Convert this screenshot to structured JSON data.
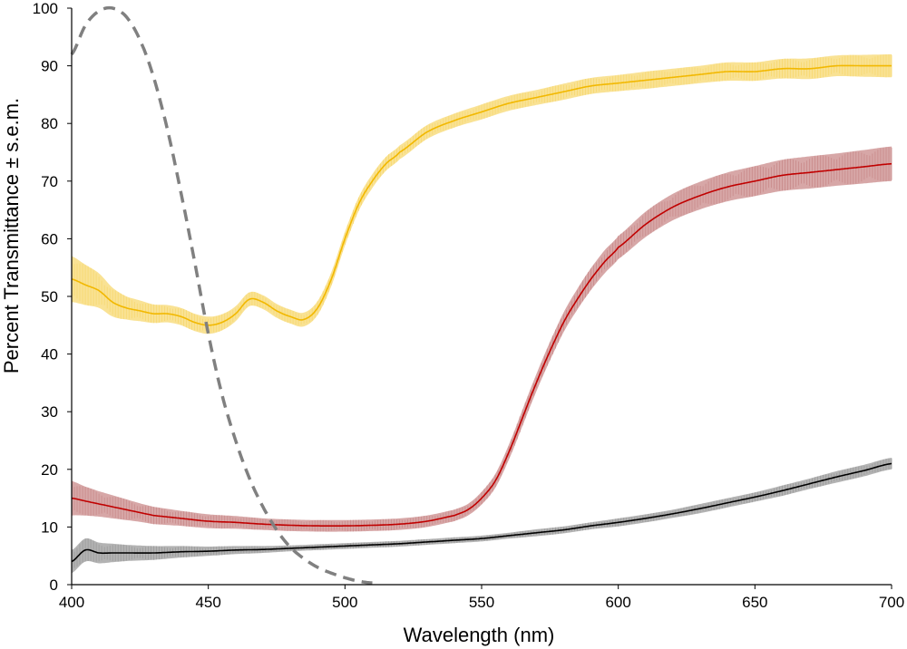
{
  "chart_data": {
    "type": "line",
    "title": "",
    "xlabel": "Wavelength (nm)",
    "ylabel": "Percent Transmittance ± s.e.m.",
    "xlim": [
      400,
      700
    ],
    "ylim": [
      0,
      100
    ],
    "x_ticks": [
      "400",
      "450",
      "500",
      "550",
      "600",
      "650",
      "700"
    ],
    "y_ticks": [
      "0",
      "10",
      "20",
      "30",
      "40",
      "50",
      "60",
      "70",
      "80",
      "90",
      "100"
    ],
    "grid": false,
    "legend": "none",
    "series": [
      {
        "color": "#f2b800",
        "band_color": "#f7d870",
        "x": [
          400,
          405,
          410,
          415,
          420,
          425,
          430,
          435,
          440,
          445,
          450,
          455,
          460,
          465,
          470,
          475,
          480,
          485,
          490,
          495,
          500,
          505,
          510,
          515,
          520,
          530,
          540,
          550,
          560,
          570,
          580,
          590,
          600,
          610,
          620,
          630,
          640,
          650,
          660,
          670,
          680,
          690,
          700
        ],
        "values": [
          53,
          52,
          51,
          49,
          48,
          47.5,
          47,
          47,
          46.5,
          45.5,
          45,
          45.5,
          47,
          49.5,
          49,
          47.5,
          46.5,
          46,
          48,
          53,
          60,
          66,
          70,
          73,
          75,
          78.5,
          80.5,
          82,
          83.5,
          84.5,
          85.5,
          86.5,
          87,
          87.5,
          88,
          88.5,
          89,
          89,
          89.5,
          89.5,
          90,
          90,
          90
        ],
        "sem": [
          4,
          3.5,
          3,
          2.5,
          2,
          1.8,
          1.6,
          1.5,
          1.5,
          1.5,
          1.5,
          1.4,
          1.3,
          1.2,
          1.2,
          1.2,
          1.2,
          1.2,
          1.2,
          1.2,
          1.2,
          1.2,
          1.2,
          1.2,
          1.2,
          1.2,
          1.2,
          1.3,
          1.3,
          1.3,
          1.4,
          1.4,
          1.4,
          1.5,
          1.5,
          1.5,
          1.6,
          1.6,
          1.7,
          1.8,
          1.8,
          1.9,
          2
        ]
      },
      {
        "color": "#c00000",
        "band_color": "#c98a8a",
        "x": [
          400,
          405,
          410,
          415,
          420,
          425,
          430,
          440,
          450,
          460,
          470,
          480,
          490,
          500,
          510,
          520,
          530,
          540,
          545,
          550,
          555,
          560,
          565,
          570,
          575,
          580,
          585,
          590,
          595,
          600,
          610,
          620,
          630,
          640,
          650,
          660,
          670,
          680,
          690,
          700
        ],
        "values": [
          15,
          14.5,
          14,
          13.5,
          13,
          12.5,
          12,
          11.5,
          11,
          10.8,
          10.5,
          10.3,
          10.2,
          10.2,
          10.3,
          10.5,
          11,
          12,
          13,
          15,
          18,
          23,
          29,
          35,
          40.5,
          45.5,
          49.5,
          53,
          56,
          58.5,
          62.5,
          65.5,
          67.5,
          69,
          70,
          71,
          71.5,
          72,
          72.5,
          73
        ],
        "sem": [
          3,
          2.5,
          2.2,
          2,
          1.8,
          1.6,
          1.5,
          1.3,
          1.2,
          1.1,
          1,
          1,
          1,
          1,
          1,
          1,
          1,
          1,
          1,
          1.1,
          1.2,
          1.3,
          1.4,
          1.5,
          1.6,
          1.7,
          1.8,
          1.9,
          2,
          2,
          2.2,
          2.3,
          2.4,
          2.5,
          2.6,
          2.7,
          2.8,
          2.8,
          2.9,
          3
        ]
      },
      {
        "color": "#000000",
        "band_color": "#9a9a9a",
        "x": [
          400,
          405,
          410,
          415,
          420,
          430,
          440,
          450,
          460,
          470,
          480,
          490,
          500,
          510,
          520,
          530,
          540,
          550,
          560,
          570,
          580,
          590,
          600,
          610,
          620,
          630,
          640,
          650,
          660,
          670,
          680,
          690,
          700
        ],
        "values": [
          4,
          6,
          5.5,
          5.5,
          5.5,
          5.5,
          5.7,
          5.8,
          6,
          6.1,
          6.3,
          6.5,
          6.7,
          6.9,
          7.1,
          7.4,
          7.7,
          8,
          8.5,
          9,
          9.5,
          10.2,
          10.8,
          11.5,
          12.3,
          13.2,
          14.2,
          15.2,
          16.3,
          17.5,
          18.7,
          19.8,
          21
        ],
        "sem": [
          2,
          2,
          1.8,
          1.6,
          1.4,
          1.2,
          1,
          0.8,
          0.7,
          0.6,
          0.5,
          0.5,
          0.5,
          0.5,
          0.5,
          0.5,
          0.5,
          0.5,
          0.5,
          0.6,
          0.6,
          0.6,
          0.7,
          0.7,
          0.7,
          0.8,
          0.8,
          0.8,
          0.9,
          0.9,
          1,
          1,
          1
        ]
      },
      {
        "color": "#808080",
        "dashed": true,
        "x": [
          400,
          405,
          410,
          415,
          420,
          425,
          430,
          435,
          440,
          445,
          450,
          455,
          460,
          465,
          470,
          475,
          480,
          485,
          490,
          495,
          500,
          505,
          510
        ],
        "values": [
          92,
          97,
          99.5,
          100,
          98.5,
          94.5,
          88,
          79,
          68,
          56,
          43.5,
          33,
          25,
          18.5,
          13.5,
          9.5,
          6.5,
          4.5,
          3,
          2,
          1.2,
          0.6,
          0.3
        ]
      }
    ]
  }
}
